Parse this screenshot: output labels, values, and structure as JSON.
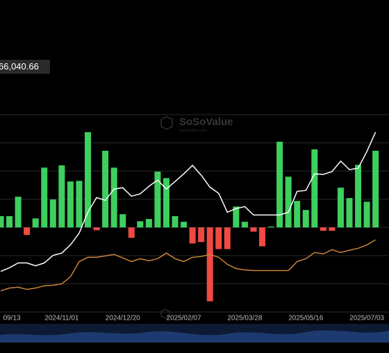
{
  "chart_data": {
    "type": "bar",
    "price_label": "66,040.66",
    "watermark": {
      "name": "SoSoValue",
      "url": "sosovalue.com"
    },
    "categories": [
      "09/13",
      null,
      null,
      null,
      null,
      null,
      null,
      "2024/11/01",
      null,
      null,
      null,
      null,
      null,
      null,
      "2024/12/20",
      null,
      null,
      null,
      null,
      null,
      null,
      "2025/02/07",
      null,
      null,
      null,
      null,
      null,
      null,
      "2025/03/28",
      null,
      null,
      null,
      null,
      null,
      null,
      "2025/05/16",
      null,
      null,
      null,
      null,
      null,
      null,
      "2025/07/03",
      null
    ],
    "values": [
      0.4,
      0.4,
      1.09,
      -0.27,
      0.32,
      2.12,
      0.99,
      2.2,
      1.63,
      1.65,
      3.38,
      -0.1,
      2.72,
      2.12,
      0.47,
      -0.37,
      0.22,
      0.3,
      1.98,
      1.75,
      0.4,
      0.2,
      -0.57,
      -0.52,
      -2.62,
      -0.77,
      -0.77,
      0.74,
      0.2,
      -0.15,
      -0.67,
      0.03,
      3.04,
      1.8,
      0.94,
      0.62,
      2.77,
      -0.12,
      -0.12,
      1.41,
      1.04,
      2.22,
      0.91,
      2.72
    ],
    "up_color": "#3ecf5e",
    "down_color": "#f04a43",
    "series": [
      {
        "color": "#ffffff",
        "values": [
          -1.56,
          -1.43,
          -1.26,
          -1.26,
          -1.36,
          -1.26,
          -0.99,
          -0.91,
          -0.62,
          -0.2,
          0.54,
          1.06,
          0.96,
          1.36,
          1.41,
          1.11,
          1.19,
          1.46,
          1.68,
          1.36,
          1.63,
          1.9,
          2.2,
          1.85,
          1.43,
          1.21,
          0.54,
          0.67,
          0.74,
          0.44,
          0.44,
          0.44,
          0.44,
          0.54,
          1.28,
          1.31,
          1.9,
          1.88,
          1.98,
          2.35,
          2.05,
          2.1,
          2.69,
          3.38
        ]
      },
      {
        "color": "#c8843a",
        "values": [
          -2.25,
          -2.15,
          -2.12,
          -2.2,
          -2.15,
          -2.07,
          -2.05,
          -2.0,
          -1.75,
          -1.21,
          -1.06,
          -1.06,
          -1.01,
          -0.96,
          -1.08,
          -1.21,
          -1.11,
          -1.18,
          -1.11,
          -0.91,
          -1.11,
          -1.21,
          -1.06,
          -1.03,
          -0.96,
          -1.06,
          -1.31,
          -1.46,
          -1.51,
          -1.53,
          -1.53,
          -1.53,
          -1.53,
          -1.53,
          -1.21,
          -1.11,
          -0.89,
          -0.94,
          -0.79,
          -0.89,
          -0.81,
          -0.74,
          -0.62,
          -0.44
        ]
      }
    ],
    "ylim": [
      -3,
      4
    ],
    "yticks": [
      -3,
      -2,
      -1,
      0,
      1,
      2,
      3,
      4
    ],
    "grid": true
  }
}
